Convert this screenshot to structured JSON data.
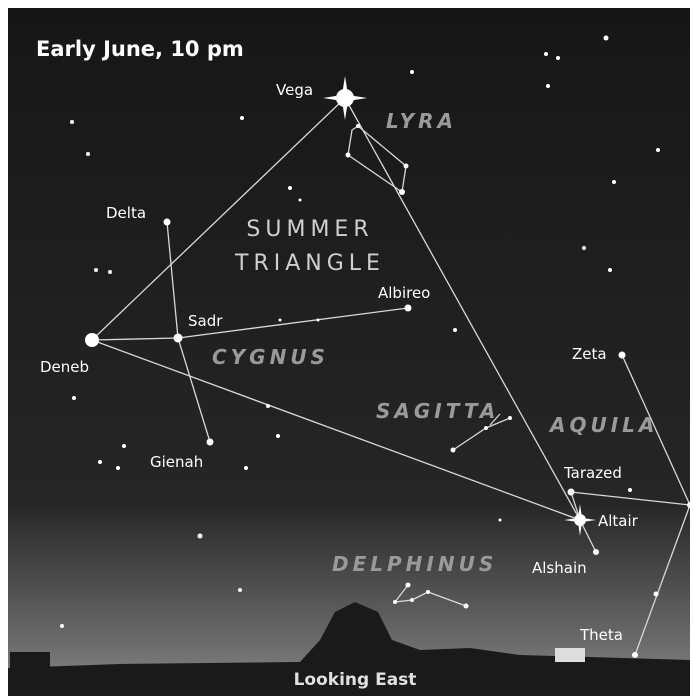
{
  "title": "Early June, 10 pm",
  "asterism": {
    "line1": "SUMMER",
    "line2": "TRIANGLE"
  },
  "stars": [
    "Vega",
    "Deneb",
    "Altair",
    "Sadr",
    "Delta",
    "Gienah",
    "Albireo",
    "Zeta",
    "Tarazed",
    "Alshain",
    "Theta"
  ],
  "constellations": [
    "LYRA",
    "CYGNUS",
    "SAGITTA",
    "AQUILA",
    "DELPHINUS"
  ],
  "footer": "Looking East"
}
